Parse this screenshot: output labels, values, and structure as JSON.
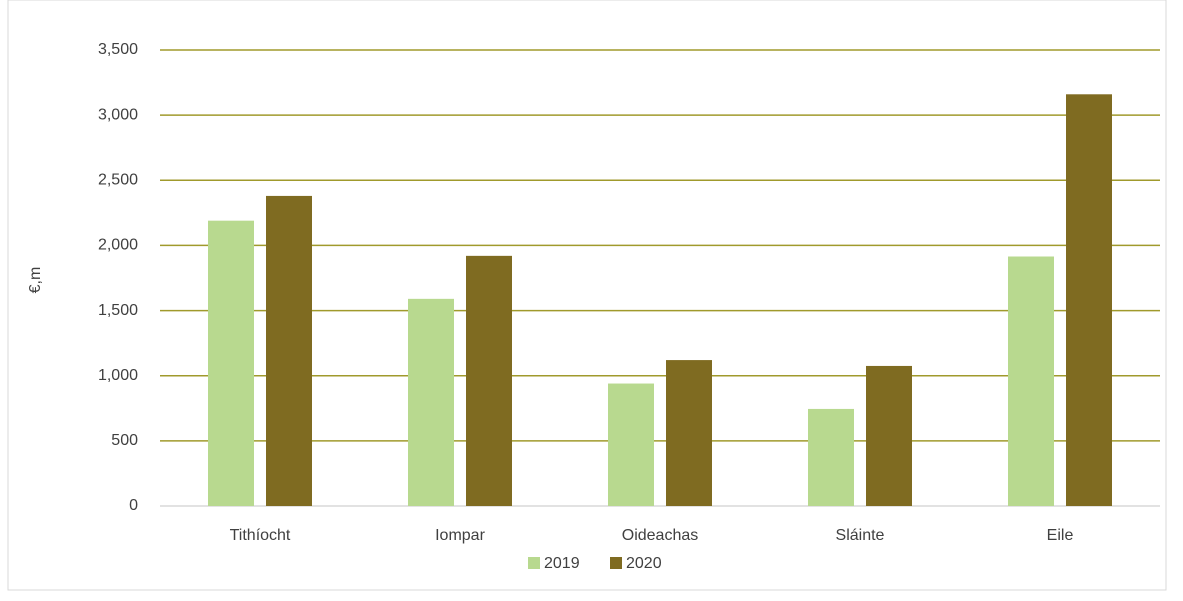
{
  "chart_data": {
    "type": "bar",
    "y_label": "€,m",
    "categories": [
      "Tithíocht",
      "Iompar",
      "Oideachas",
      "Sláinte",
      "Eile"
    ],
    "series": [
      {
        "name": "2019",
        "color": "#b8d98f",
        "values": [
          2190,
          1590,
          940,
          745,
          1915
        ]
      },
      {
        "name": "2020",
        "color": "#7f6b21",
        "values": [
          2380,
          1920,
          1120,
          1075,
          3160
        ]
      }
    ],
    "ylim": [
      0,
      3500
    ],
    "yticks": [
      0,
      500,
      {
        "value": 1000,
        "label": "1,000"
      },
      {
        "value": 1500,
        "label": "1,500"
      },
      {
        "value": 2000,
        "label": "2,000"
      },
      {
        "value": 2500,
        "label": "2,500"
      },
      {
        "value": 3000,
        "label": "3,000"
      },
      {
        "value": 3500,
        "label": "3,500"
      }
    ],
    "grid": true,
    "legend": "bottom"
  }
}
